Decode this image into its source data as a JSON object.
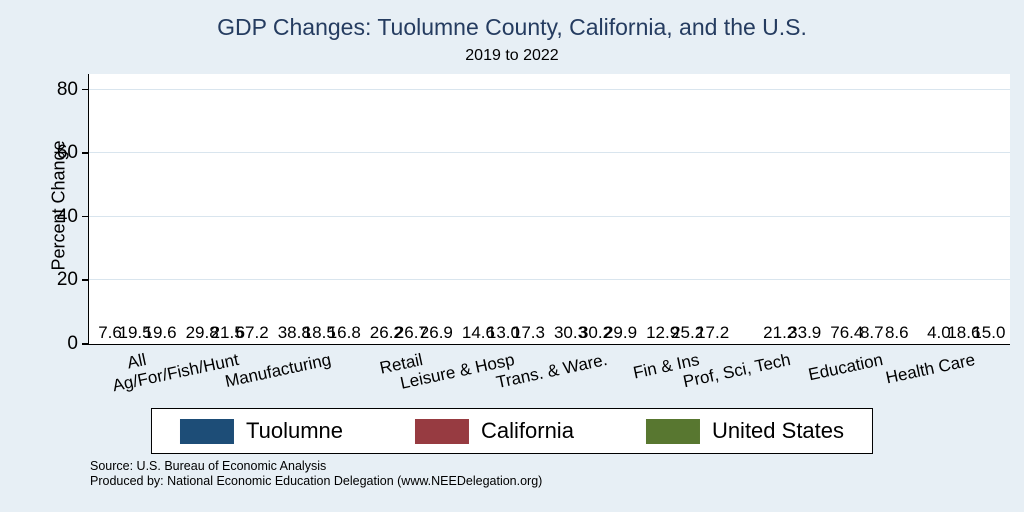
{
  "title": "GDP Changes: Tuolumne County, California, and the U.S.",
  "subtitle": "2019 to 2022",
  "source_line1": "Source: U.S. Bureau of Economic Analysis",
  "source_line2": "Produced by: National Economic Education Delegation (www.NEEDelegation.org)",
  "colors": {
    "background": "#e7eff5",
    "plot_background": "#ffffff",
    "gridline": "#d9e5ee",
    "title_text": "#253c60",
    "tuolumne": "#1d4d77",
    "california": "#973b41",
    "united_states": "#587730"
  },
  "chart_data": {
    "type": "bar",
    "title": "GDP Changes: Tuolumne County, California, and the U.S.",
    "subtitle": "2019 to 2022",
    "xlabel": "",
    "ylabel": "Percent Change",
    "ylim": [
      0,
      85
    ],
    "yticks": [
      0,
      20,
      40,
      60,
      80
    ],
    "grid": true,
    "legend_position": "bottom",
    "categories": [
      "All",
      "Ag/For/Fish/Hunt",
      "Manufacturing",
      "Retail",
      "Leisure & Hosp",
      "Trans. & Ware.",
      "Fin & Ins",
      "Prof, Sci, Tech",
      "Education",
      "Health Care"
    ],
    "series": [
      {
        "name": "Tuolumne",
        "color": "#1d4d77",
        "values": [
          7.6,
          29.8,
          38.8,
          26.2,
          14.6,
          30.3,
          12.9,
          null,
          76.4,
          4.0
        ]
      },
      {
        "name": "California",
        "color": "#973b41",
        "values": [
          19.5,
          21.5,
          18.5,
          26.7,
          13.0,
          30.2,
          25.2,
          21.2,
          8.7,
          18.6
        ]
      },
      {
        "name": "United States",
        "color": "#587730",
        "values": [
          19.6,
          67.2,
          16.8,
          26.9,
          17.3,
          29.9,
          17.2,
          33.9,
          8.6,
          15.0
        ]
      }
    ]
  }
}
